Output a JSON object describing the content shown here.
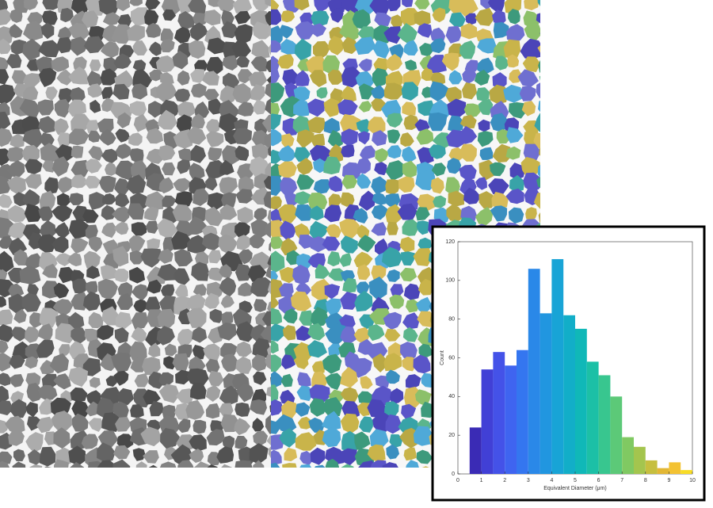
{
  "chart_data": {
    "type": "histogram",
    "xlabel": "Equivalent Diameter (μm)",
    "ylabel": "Count",
    "bins": [
      0.5,
      1,
      1.5,
      2,
      2.5,
      3,
      3.5,
      4,
      4.5,
      5,
      5.5,
      6,
      6.5,
      7,
      7.5,
      8,
      8.5,
      9,
      9.5,
      10
    ],
    "values": [
      24,
      54,
      63,
      56,
      64,
      106,
      83,
      111,
      82,
      75,
      58,
      51,
      40,
      19,
      14,
      7,
      3,
      6,
      2
    ],
    "colors": [
      "#3a2bb5",
      "#4140d6",
      "#4452e8",
      "#3f64f0",
      "#3476f0",
      "#2a88e8",
      "#2196e0",
      "#18a4d6",
      "#12aec8",
      "#10b8b8",
      "#1cc0a6",
      "#38c68f",
      "#5cc978",
      "#80c962",
      "#a4c54e",
      "#c6bf3f",
      "#e2b735",
      "#f3c232",
      "#f8dc26"
    ],
    "xlim": [
      0,
      10
    ],
    "xticks": [
      0,
      1,
      2,
      3,
      4,
      5,
      6,
      7,
      8,
      9,
      10
    ],
    "ylim": [
      0,
      120
    ],
    "yticks": [
      0,
      20,
      40,
      60,
      80,
      100,
      120
    ]
  }
}
